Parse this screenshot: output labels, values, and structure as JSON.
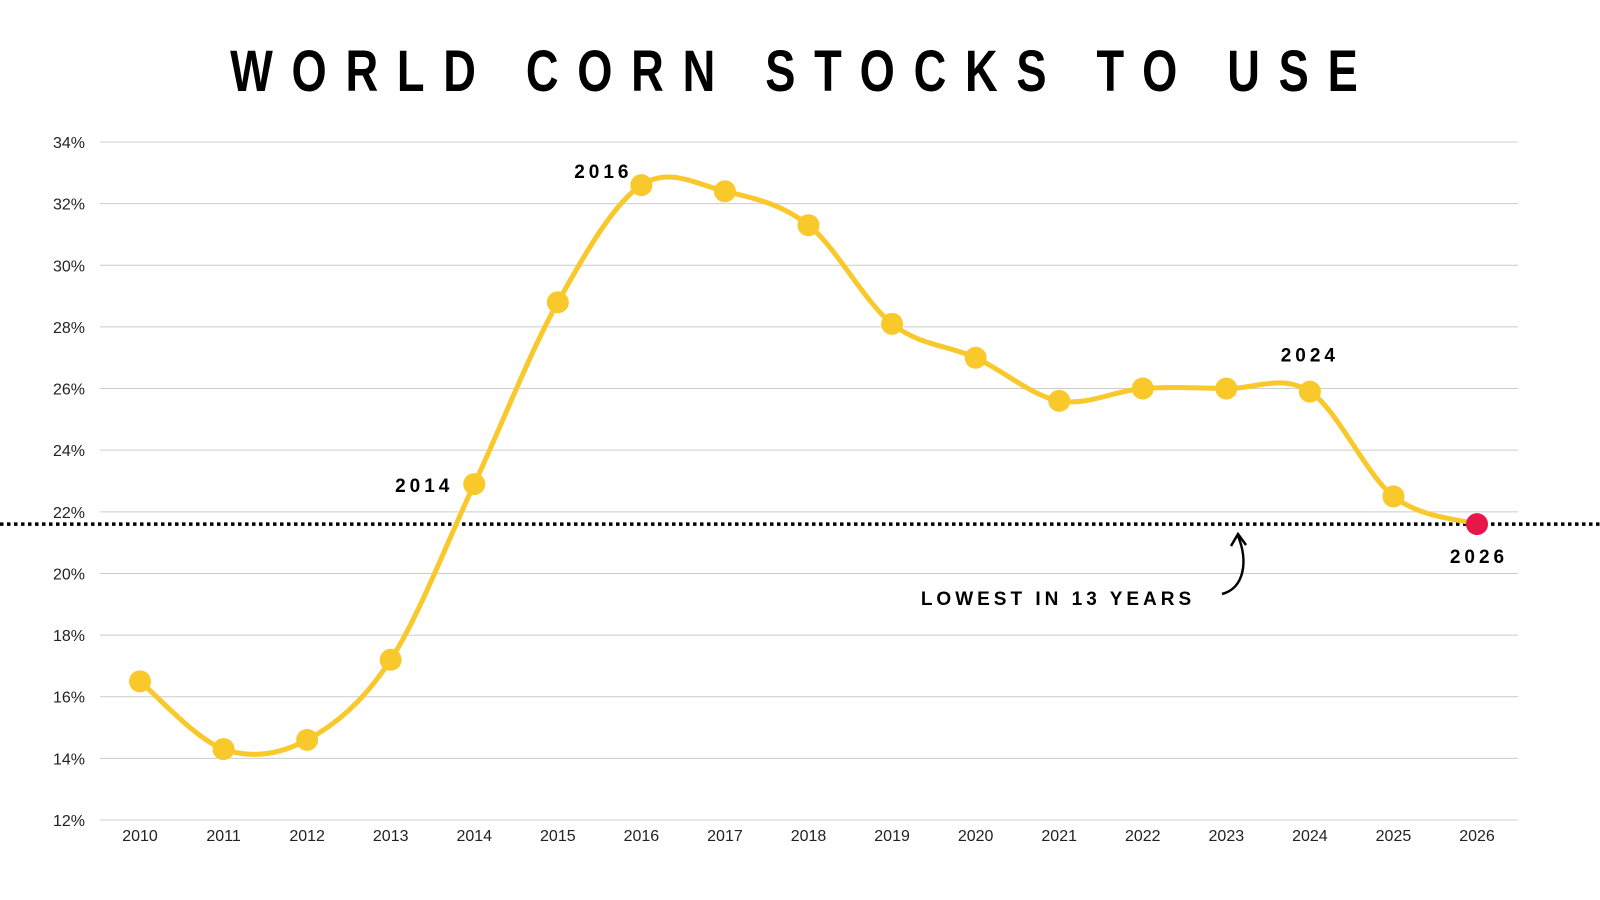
{
  "chart_data": {
    "type": "line",
    "title": "WORLD CORN STOCKS TO USE",
    "xlabel": "",
    "ylabel": "",
    "x": [
      "2010",
      "2011",
      "2012",
      "2013",
      "2014",
      "2015",
      "2016",
      "2017",
      "2018",
      "2019",
      "2020",
      "2021",
      "2022",
      "2023",
      "2024",
      "2025",
      "2026"
    ],
    "values": [
      16.5,
      14.3,
      14.6,
      17.2,
      22.9,
      28.8,
      32.6,
      32.4,
      31.3,
      28.1,
      27.0,
      25.6,
      26.0,
      26.0,
      25.9,
      22.5,
      21.6
    ],
    "ylim": [
      12,
      34
    ],
    "yticks": [
      12,
      14,
      16,
      18,
      20,
      22,
      24,
      26,
      28,
      30,
      32,
      34
    ],
    "ytick_labels": [
      "12%",
      "14%",
      "16%",
      "18%",
      "20%",
      "22%",
      "24%",
      "26%",
      "28%",
      "30%",
      "32%",
      "34%"
    ],
    "grid": true,
    "reference_line": {
      "value": 21.6,
      "style": "dotted"
    },
    "point_labels": [
      {
        "x": "2014",
        "text": "2014"
      },
      {
        "x": "2016",
        "text": "2016"
      },
      {
        "x": "2024",
        "text": "2024"
      },
      {
        "x": "2026",
        "text": "2026"
      }
    ],
    "annotation": "LOWEST IN 13 YEARS",
    "colors": {
      "line": "#F9C82B",
      "highlight": "#E8174A",
      "grid": "#CCCCCC"
    }
  }
}
